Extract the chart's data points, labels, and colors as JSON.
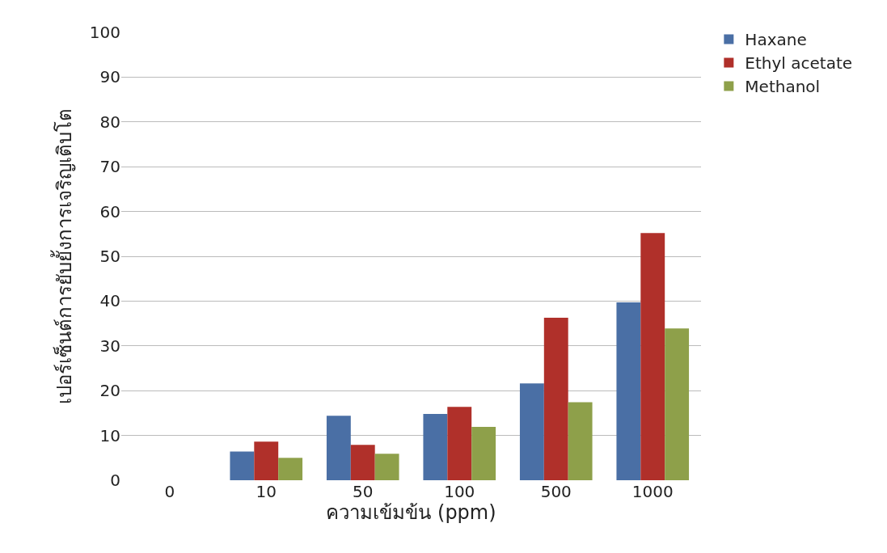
{
  "chart_data": {
    "type": "bar",
    "xlabel": "ความเข้มข้น (ppm)",
    "ylabel": "เปอร์เซ็นต์การยับยั้งการเจริญเติบโต",
    "categories": [
      "0",
      "10",
      "50",
      "100",
      "500",
      "1000"
    ],
    "series": [
      {
        "name": "Haxane",
        "color": "#4a6fa5",
        "values": [
          null,
          6.4,
          14.4,
          14.8,
          21.6,
          39.7
        ]
      },
      {
        "name": "Ethyl acetate",
        "color": "#b0302a",
        "values": [
          null,
          8.6,
          7.9,
          16.4,
          36.3,
          55.2
        ]
      },
      {
        "name": "Methanol",
        "color": "#8ea04a",
        "values": [
          null,
          5.0,
          5.9,
          11.9,
          17.4,
          33.9
        ]
      }
    ],
    "ylim": [
      0,
      100
    ],
    "yticks": [
      0,
      10,
      20,
      30,
      40,
      50,
      60,
      70,
      80,
      90,
      100
    ],
    "grid": "y",
    "legend": "top right"
  }
}
